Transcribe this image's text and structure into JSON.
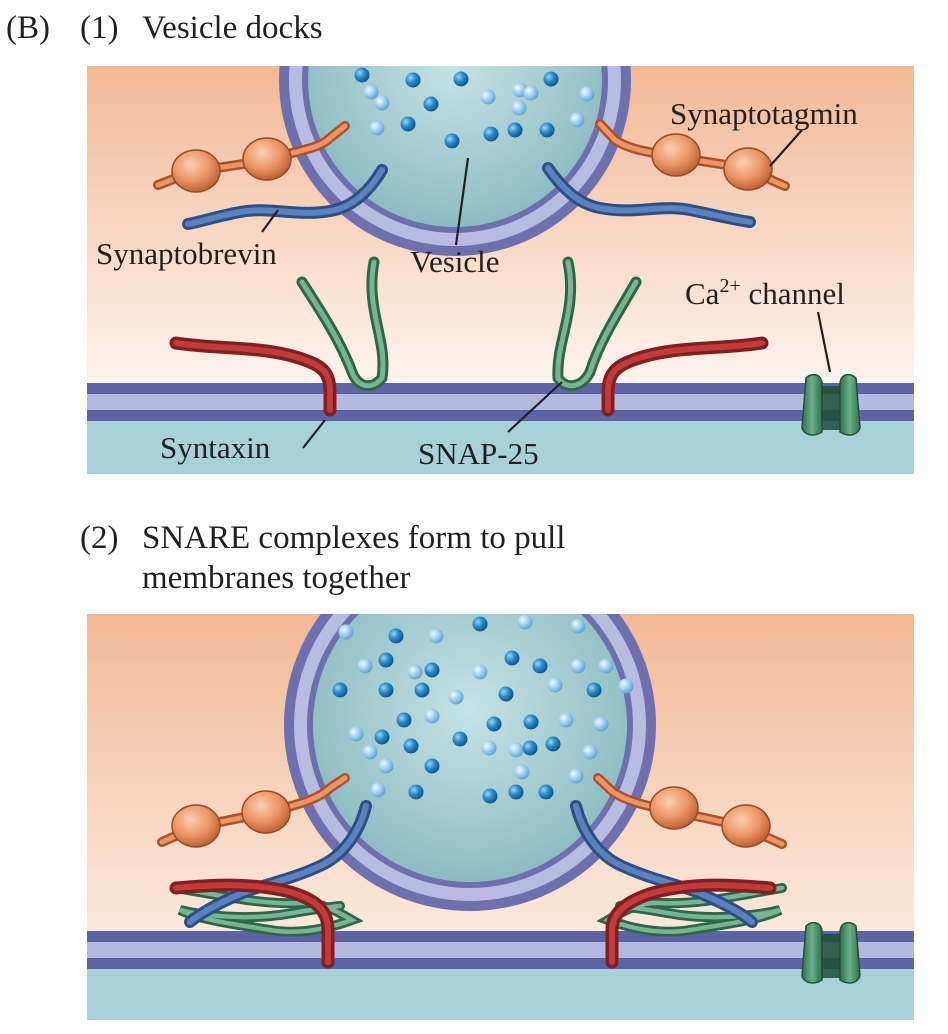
{
  "figure": {
    "panel_label": "(B)",
    "panels": [
      {
        "number": "(1)",
        "title_lines": [
          "Vesicle docks"
        ],
        "labels": {
          "synaptotagmin": "Synaptotagmin",
          "synaptobrevin": "Synaptobrevin",
          "vesicle": "Vesicle",
          "ca_channel_base": "Ca",
          "ca_channel_sup": "2+",
          "ca_channel_tail": " channel",
          "syntaxin": "Syntaxin",
          "snap25": "SNAP-25"
        }
      },
      {
        "number": "(2)",
        "title_lines": [
          "SNARE complexes form to pull",
          "membranes together"
        ]
      }
    ]
  },
  "colors": {
    "cytoplasm_top": "#f2b896",
    "cytoplasm_bottom": "#fdf4ee",
    "membrane_dark": "#5e63a3",
    "membrane_light": "#b5b9df",
    "extracellular": "#a8d2d8",
    "vesicle_fill": "#a9d0d4",
    "vesicle_membrane_dark": "#6d70ac",
    "vesicle_membrane_light": "#b9bbe0",
    "synaptotagmin": "#e98b5d",
    "synaptobrevin": "#4a6ea8",
    "syntaxin": "#b33434",
    "snap25": "#4f8f6a",
    "transmitter_dark": "#1f84c6",
    "transmitter_light": "#8fc6ea",
    "channel": "#3f8a65"
  }
}
